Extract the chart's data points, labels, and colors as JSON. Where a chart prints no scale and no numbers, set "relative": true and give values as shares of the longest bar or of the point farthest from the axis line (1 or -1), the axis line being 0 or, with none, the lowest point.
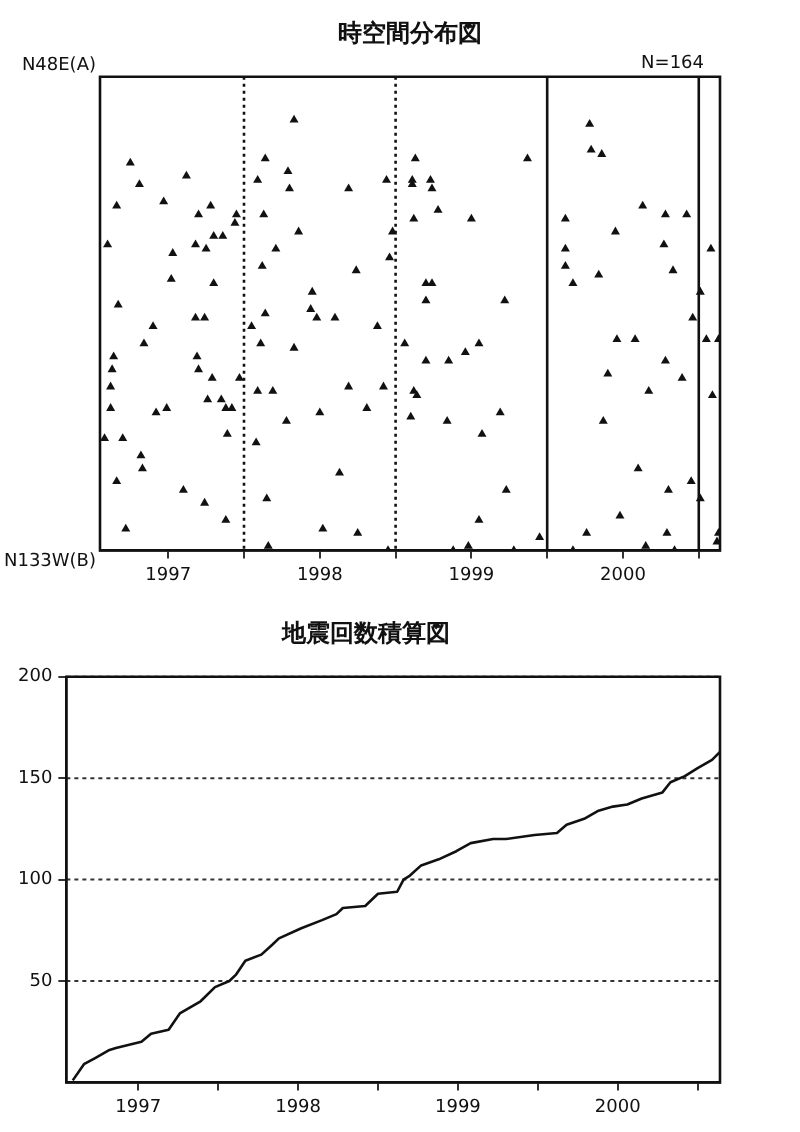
{
  "chart_data": [
    {
      "type": "scatter",
      "title": "時空間分布図",
      "annotations": [
        "N=164",
        "N48E(A)",
        "N133W(B)"
      ],
      "marker": "triangle",
      "relative": true,
      "xlim": [
        1997.05,
        2001.14
      ],
      "xticks": [
        {
          "value": 1997.5,
          "label": "1997"
        },
        {
          "value": 1998,
          "label": null
        },
        {
          "value": 1998.5,
          "label": "1998"
        },
        {
          "value": 1999,
          "label": null
        },
        {
          "value": 1999.5,
          "label": "1999"
        },
        {
          "value": 2000,
          "label": null
        },
        {
          "value": 2000.5,
          "label": "2000"
        },
        {
          "value": 2001,
          "label": null
        }
      ],
      "ref_lines": [
        {
          "axis": "x",
          "value": 1998,
          "line_style": "dotted"
        },
        {
          "axis": "x",
          "value": 1999,
          "line_style": "dotted"
        },
        {
          "axis": "x",
          "value": 2000,
          "line_style": "solid"
        },
        {
          "axis": "x",
          "value": 2001,
          "line_style": "solid"
        }
      ],
      "series": [
        {
          "color": "#111111",
          "x": [
            1997.1,
            1997.16,
            1997.25,
            1997.31,
            1997.47,
            1997.53,
            1997.52,
            1997.62,
            1997.7,
            1997.68,
            1997.75,
            1997.78,
            1997.8,
            1997.86,
            1997.8,
            1997.95,
            1997.94,
            1997.17,
            1997.68,
            1997.74,
            1997.4,
            1998.09,
            1998.14,
            1998.13,
            1998.12,
            1998.21,
            1998.29,
            1998.3,
            1998.33,
            1998.36,
            1998.45,
            1998.44,
            1998.48,
            1998.6,
            1998.69,
            1998.74,
            1998.94,
            1998.98,
            1998.96,
            1998.14,
            1999.13,
            1999.11,
            1999.11,
            1999.23,
            1999.24,
            1999.12,
            1999.28,
            1999.5,
            1999.2,
            1999.24,
            1999.2,
            1999.72,
            1999.87,
            2000.28,
            2000.29,
            2000.36,
            2000.12,
            2000.12,
            2000.12,
            2000.17,
            2000.34,
            2000.45,
            2000.63,
            2000.78,
            2000.92,
            2000.77,
            2000.83,
            2000.96,
            2001.08,
            2001.01,
            1997.08,
            1997.14,
            1997.13,
            1997.12,
            1997.12,
            1997.2,
            1997.16,
            1997.22,
            1997.32,
            1997.33,
            1997.34,
            1997.42,
            1997.49,
            1997.6,
            1997.69,
            1997.7,
            1997.76,
            1997.79,
            1997.74,
            1997.85,
            1997.88,
            1997.89,
            1997.92,
            1997.88,
            1997.97,
            1998.05,
            1998.11,
            1998.09,
            1998.08,
            1998.19,
            1998.15,
            1998.16,
            1998.28,
            1998.33,
            1998.5,
            1998.52,
            1998.63,
            1998.69,
            1998.75,
            1998.81,
            1998.88,
            1998.92,
            1998.95,
            1999.06,
            1999.1,
            1999.12,
            1999.14,
            1999.2,
            1999.35,
            1999.34,
            1999.46,
            1999.55,
            1999.57,
            1999.69,
            1999.73,
            1999.55,
            1999.48,
            1999.38,
            1999.78,
            1999.95,
            2000.17,
            2000.26,
            2000.37,
            2000.4,
            2000.46,
            2000.48,
            2000.58,
            2000.6,
            2000.65,
            2000.67,
            2000.78,
            2000.79,
            2000.8,
            2000.89,
            2000.95,
            2000.84,
            2001.01,
            2001.05,
            2001.13,
            2001.09,
            2001.13,
            2001.12
          ],
          "values": [
            0.71,
            0.8,
            0.9,
            0.85,
            0.81,
            0.69,
            0.63,
            0.87,
            0.78,
            0.71,
            0.7,
            0.8,
            0.73,
            0.73,
            0.62,
            0.78,
            0.76,
            0.57,
            0.54,
            0.54,
            0.52,
            0.86,
            0.91,
            0.78,
            0.66,
            0.7,
            0.88,
            0.84,
            1,
            0.74,
            0.6,
            0.56,
            0.54,
            0.54,
            0.84,
            0.65,
            0.86,
            0.74,
            0.68,
            0.55,
            0.91,
            0.86,
            0.85,
            0.86,
            0.84,
            0.77,
            0.79,
            0.77,
            0.62,
            0.62,
            0.58,
            0.58,
            0.91,
            0.99,
            0.93,
            0.92,
            0.77,
            0.7,
            0.66,
            0.62,
            0.64,
            0.74,
            0.8,
            0.78,
            0.78,
            0.71,
            0.65,
            0.54,
            0.7,
            0.6,
            0.26,
            0.45,
            0.42,
            0.38,
            0.33,
            0.26,
            0.16,
            0.05,
            0.22,
            0.19,
            0.48,
            0.32,
            0.33,
            0.14,
            0.45,
            0.42,
            0.35,
            0.4,
            0.11,
            0.35,
            0.33,
            0.27,
            0.33,
            0.07,
            0.4,
            0.52,
            0.48,
            0.37,
            0.25,
            0.37,
            0.12,
            0.01,
            0.3,
            0.47,
            0.32,
            0.05,
            0.18,
            0.38,
            0.04,
            0.33,
            0.52,
            0.38,
            0,
            0.48,
            0.31,
            0.37,
            0.36,
            0.44,
            0.44,
            0.3,
            0.46,
            0.48,
            0.27,
            0.32,
            0.14,
            0.07,
            0.01,
            0,
            0,
            0.03,
            0,
            0.04,
            0.3,
            0.41,
            0.49,
            0.08,
            0.49,
            0.19,
            0.01,
            0.37,
            0.44,
            0.04,
            0.14,
            0.4,
            0.16,
            0,
            0.12,
            0.49,
            0.49,
            0.36,
            0.04,
            0.02
          ]
        }
      ]
    },
    {
      "type": "line",
      "title": "地震回数積算図",
      "marker": "none",
      "xlim": [
        1997.05,
        2001.14
      ],
      "ylim": [
        0,
        200
      ],
      "yticks": [
        50,
        100,
        150,
        200
      ],
      "grid": "y",
      "xticks": [
        {
          "value": 1997.5,
          "label": "1997"
        },
        {
          "value": 1998,
          "label": null
        },
        {
          "value": 1998.5,
          "label": "1998"
        },
        {
          "value": 1999,
          "label": null
        },
        {
          "value": 1999.5,
          "label": "1999"
        },
        {
          "value": 2000,
          "label": null
        },
        {
          "value": 2000.5,
          "label": "2000"
        },
        {
          "value": 2001,
          "label": null
        }
      ],
      "series": [
        {
          "color": "#111111",
          "x": [
            1997.09,
            1997.16,
            1997.23,
            1997.32,
            1997.36,
            1997.52,
            1997.58,
            1997.69,
            1997.76,
            1997.89,
            1997.98,
            1998.07,
            1998.11,
            1998.17,
            1998.27,
            1998.34,
            1998.38,
            1998.52,
            1998.65,
            1998.74,
            1998.78,
            1998.92,
            1999.0,
            1999.12,
            1999.16,
            1999.2,
            1999.27,
            1999.38,
            1999.49,
            1999.58,
            1999.72,
            1999.8,
            1999.98,
            2000.12,
            2000.18,
            2000.29,
            2000.38,
            2000.47,
            2000.56,
            2000.65,
            2000.78,
            2000.83,
            2000.92,
            2001.0,
            2001.09,
            2001.14
          ],
          "values": [
            1,
            9,
            12,
            16,
            17,
            20,
            24,
            26,
            34,
            40,
            47,
            50,
            53,
            60,
            63,
            68,
            71,
            76,
            80,
            83,
            86,
            87,
            93,
            94,
            100,
            102,
            107,
            110,
            114,
            118,
            120,
            120,
            122,
            123,
            127,
            130,
            134,
            136,
            137,
            140,
            143,
            148,
            151,
            155,
            159,
            163
          ]
        }
      ]
    }
  ]
}
